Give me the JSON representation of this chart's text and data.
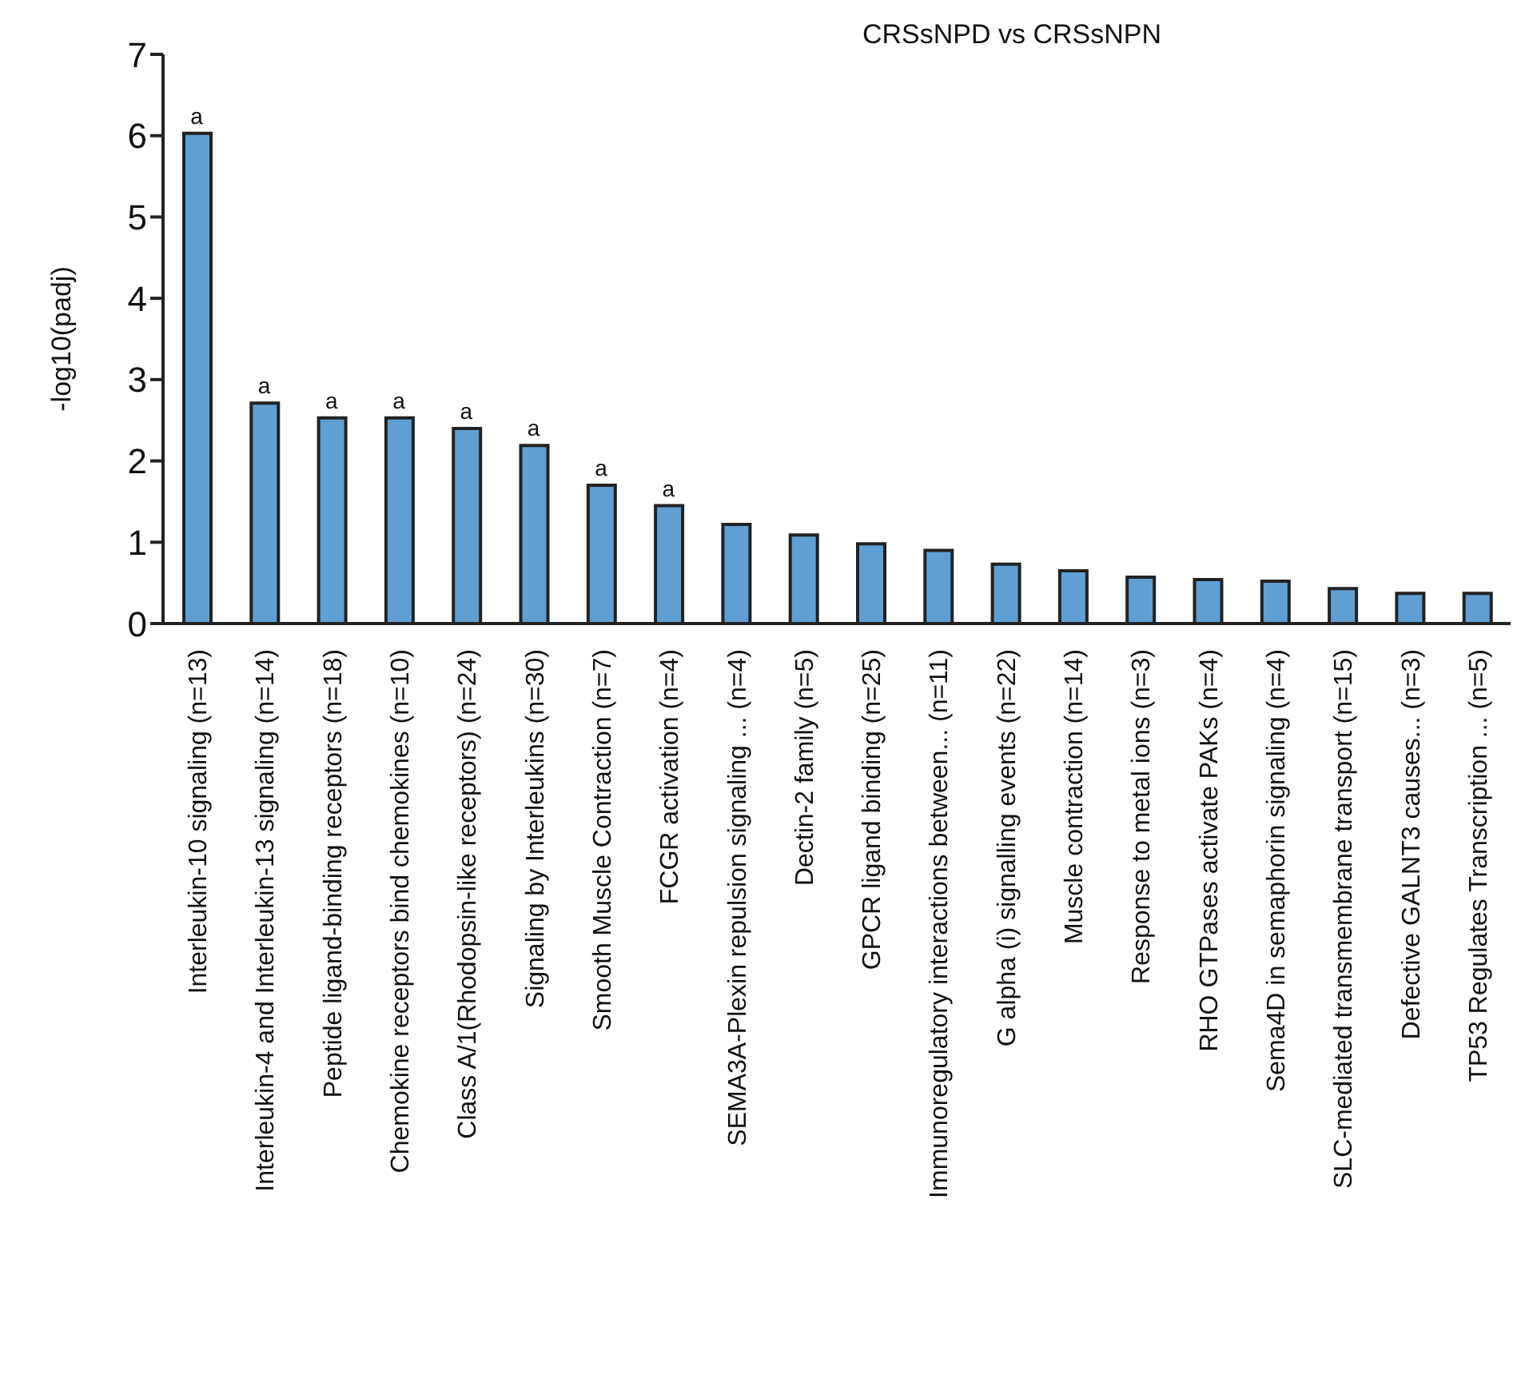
{
  "chart_data": {
    "type": "bar",
    "title": "CRSsNPD vs CRSsNPN",
    "ylabel": "-log10(padj)",
    "categories": [
      "Interleukin-10 signaling (n=13)",
      "Interleukin-4 and Interleukin-13 signaling (n=14)",
      "Peptide ligand-binding receptors (n=18)",
      "Chemokine receptors bind chemokines (n=10)",
      "Class A/1(Rhodopsin-like receptors) (n=24)",
      "Signaling by Interleukins (n=30)",
      "Smooth Muscle Contraction (n=7)",
      "FCGR activation (n=4)",
      "SEMA3A-Plexin repulsion signaling ... (n=4)",
      "Dectin-2 family (n=5)",
      "GPCR ligand binding (n=25)",
      "Immunoregulatory interactions between... (n=11)",
      "G alpha (i) signalling events (n=22)",
      "Muscle contraction (n=14)",
      "Response to metal ions (n=3)",
      "RHO GTPases activate PAKs (n=4)",
      "Sema4D in semaphorin signaling (n=4)",
      "SLC-mediated transmembrane transport (n=15)",
      "Defective GALNT3 causes... (n=3)",
      "TP53 Regulates Transcription ... (n=5)"
    ],
    "values": [
      6.03,
      2.71,
      2.53,
      2.53,
      2.4,
      2.19,
      1.7,
      1.45,
      1.22,
      1.09,
      0.98,
      0.9,
      0.73,
      0.65,
      0.57,
      0.54,
      0.52,
      0.43,
      0.37,
      0.37
    ],
    "color": "#5f9fd3",
    "ylim": [
      0,
      7
    ],
    "yticks": [
      0,
      1,
      2,
      3,
      4,
      5,
      6,
      7
    ],
    "grid": false,
    "legend": false,
    "annotations": [
      {
        "text": "a",
        "x": "Interleukin-10 signaling (n=13)",
        "y": 6.03
      },
      {
        "text": "a",
        "x": "Interleukin-4 and Interleukin-13 signaling (n=14)",
        "y": 2.71
      },
      {
        "text": "a",
        "x": "Peptide ligand-binding receptors (n=18)",
        "y": 2.53
      },
      {
        "text": "a",
        "x": "Chemokine receptors bind chemokines (n=10)",
        "y": 2.53
      },
      {
        "text": "a",
        "x": "Class A/1(Rhodopsin-like receptors) (n=24)",
        "y": 2.4
      },
      {
        "text": "a",
        "x": "Signaling by Interleukins (n=30)",
        "y": 2.19
      },
      {
        "text": "a",
        "x": "Smooth Muscle Contraction (n=7)",
        "y": 1.7
      },
      {
        "text": "a",
        "x": "FCGR activation (n=4)",
        "y": 1.45
      }
    ]
  }
}
